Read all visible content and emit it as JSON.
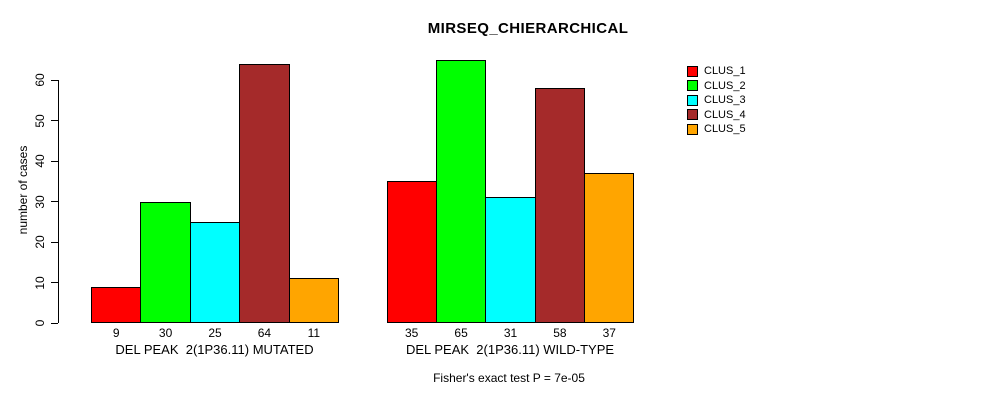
{
  "chart_data": {
    "type": "bar",
    "orientation": "vertical",
    "grouping": "grouped",
    "title": "MIRSEQ_CHIERARCHICAL",
    "ylabel": "number of cases",
    "xlabel": "",
    "yticks": [
      0,
      10,
      20,
      30,
      40,
      50,
      60
    ],
    "ylim": [
      0,
      65
    ],
    "grid": false,
    "legend_position": "right",
    "show_value_labels": true,
    "categories": [
      "DEL PEAK  2(1P36.11) MUTATED",
      "DEL PEAK  2(1P36.11) WILD-TYPE"
    ],
    "series": [
      {
        "name": "CLUS_1",
        "color": "#FF0000",
        "values": [
          9,
          35
        ]
      },
      {
        "name": "CLUS_2",
        "color": "#00FF00",
        "values": [
          30,
          65
        ]
      },
      {
        "name": "CLUS_3",
        "color": "#00FFFF",
        "values": [
          25,
          31
        ]
      },
      {
        "name": "CLUS_4",
        "color": "#A52A2A",
        "values": [
          64,
          58
        ]
      },
      {
        "name": "CLUS_5",
        "color": "#FFA500",
        "values": [
          11,
          37
        ]
      }
    ],
    "annotation": "Fisher's exact test P = 7e-05",
    "axis_color": "#000000",
    "background_color": "#FFFFFF"
  }
}
